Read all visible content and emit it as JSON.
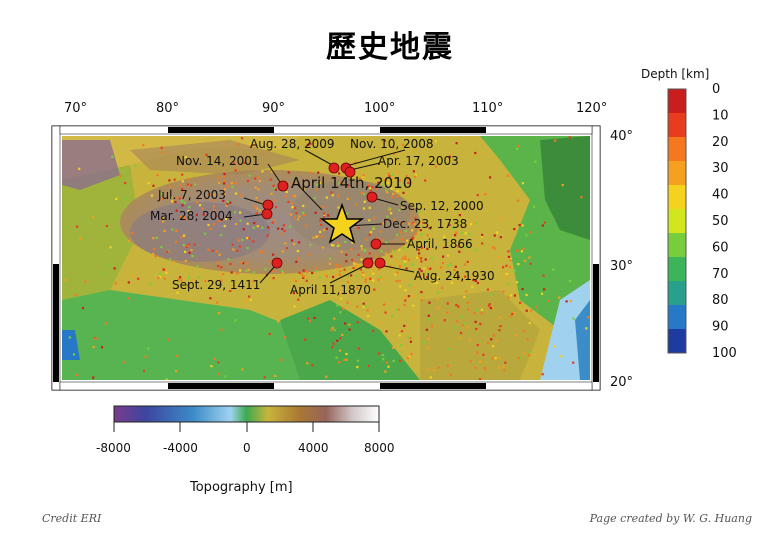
{
  "page_title": "歷史地震",
  "map": {
    "lon_ticks": [
      "70°",
      "80°",
      "90°",
      "100°",
      "110°",
      "120°"
    ],
    "lat_ticks": [
      "40°",
      "30°",
      "20°"
    ],
    "events": [
      {
        "label": "Aug. 28, 2009",
        "type": "historical"
      },
      {
        "label": "Nov. 10, 2008",
        "type": "historical"
      },
      {
        "label": "Nov. 14, 2001",
        "type": "historical"
      },
      {
        "label": "Apr. 17, 2003",
        "type": "historical"
      },
      {
        "label": "April 14th, 2010",
        "type": "main"
      },
      {
        "label": "Jul. 7, 2003",
        "type": "historical"
      },
      {
        "label": "Sep. 12, 2000",
        "type": "historical"
      },
      {
        "label": "Mar. 28, 2004",
        "type": "historical"
      },
      {
        "label": "Dec. 23, 1738",
        "type": "historical"
      },
      {
        "label": "April, 1866",
        "type": "historical"
      },
      {
        "label": "Sept. 29, 1411",
        "type": "historical"
      },
      {
        "label": "April 11,1870",
        "type": "historical"
      },
      {
        "label": "Aug. 24,1930",
        "type": "historical"
      }
    ]
  },
  "depth_scale": {
    "title": "Depth [km]",
    "ticks": [
      "0",
      "10",
      "20",
      "30",
      "40",
      "50",
      "60",
      "70",
      "80",
      "90",
      "100"
    ],
    "colors": [
      "#c81e1e",
      "#e83c1e",
      "#f5781e",
      "#f5a01e",
      "#f5d21e",
      "#d2e61e",
      "#78cd3c",
      "#3cb45a",
      "#28a08c",
      "#2878c8",
      "#1e3ca0"
    ]
  },
  "topo_scale": {
    "title": "Topography [m]",
    "ticks": [
      "-8000",
      "-4000",
      "0",
      "4000",
      "8000"
    ]
  },
  "footer": {
    "credit": "Credit ERI",
    "author": "Page created by W. G. Huang"
  }
}
